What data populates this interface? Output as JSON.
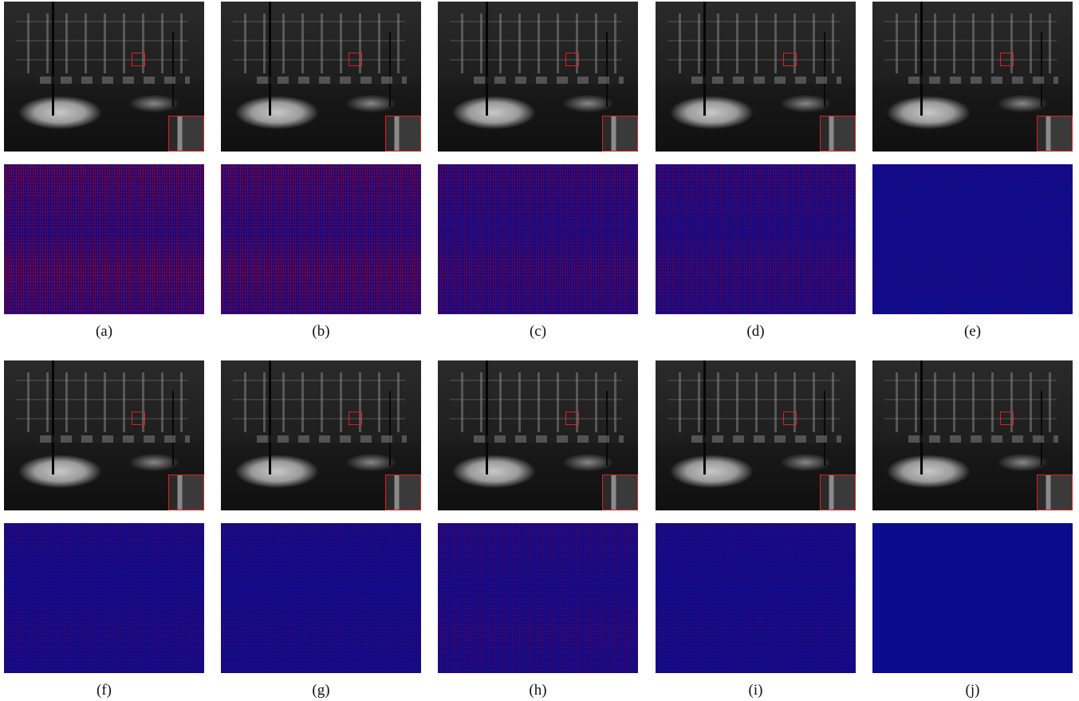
{
  "panels": [
    {
      "label": "(a)"
    },
    {
      "label": "(b)"
    },
    {
      "label": "(c)"
    },
    {
      "label": "(d)"
    },
    {
      "label": "(e)"
    },
    {
      "label": "(f)"
    },
    {
      "label": "(g)"
    },
    {
      "label": "(h)"
    },
    {
      "label": "(i)"
    },
    {
      "label": "(j)"
    }
  ]
}
